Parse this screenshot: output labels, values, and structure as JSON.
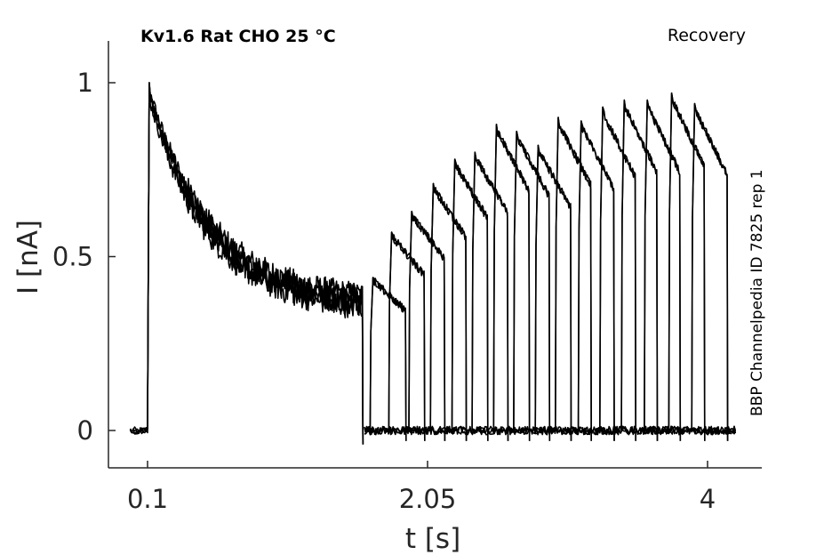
{
  "chart_data": {
    "type": "line",
    "title_left": "Kv1.6  Rat  CHO  25 °C",
    "title_right": "Recovery",
    "side_label": "BBP Channelpedia ID 7825 rep 1",
    "xlabel": "t [s]",
    "ylabel": "I [nA]",
    "x_ticks": [
      {
        "value": 0.1,
        "label": "0.1"
      },
      {
        "value": 2.05,
        "label": "2.05"
      },
      {
        "value": 4,
        "label": "4"
      }
    ],
    "y_ticks": [
      {
        "value": 0,
        "label": "0"
      },
      {
        "value": 0.5,
        "label": "0.5"
      },
      {
        "value": 1,
        "label": "1"
      }
    ],
    "xlim": [
      -0.25,
      4.35
    ],
    "ylim": [
      -0.11,
      1.12
    ],
    "grid": false,
    "legend": "none",
    "line_color": "#000000",
    "prepulse": {
      "start": 0.1,
      "end": 1.6,
      "peak": 1.0,
      "steady_state": 0.37
    },
    "recovery_pulses": [
      {
        "onset": 1.65,
        "duration": 0.25,
        "peak": 0.44
      },
      {
        "onset": 1.78,
        "duration": 0.25,
        "peak": 0.57
      },
      {
        "onset": 1.92,
        "duration": 0.25,
        "peak": 0.63
      },
      {
        "onset": 2.07,
        "duration": 0.25,
        "peak": 0.71
      },
      {
        "onset": 2.22,
        "duration": 0.25,
        "peak": 0.78
      },
      {
        "onset": 2.36,
        "duration": 0.25,
        "peak": 0.8
      },
      {
        "onset": 2.51,
        "duration": 0.25,
        "peak": 0.88
      },
      {
        "onset": 2.65,
        "duration": 0.25,
        "peak": 0.86
      },
      {
        "onset": 2.8,
        "duration": 0.25,
        "peak": 0.82
      },
      {
        "onset": 2.94,
        "duration": 0.25,
        "peak": 0.9
      },
      {
        "onset": 3.1,
        "duration": 0.25,
        "peak": 0.89
      },
      {
        "onset": 3.25,
        "duration": 0.25,
        "peak": 0.93
      },
      {
        "onset": 3.4,
        "duration": 0.25,
        "peak": 0.95
      },
      {
        "onset": 3.56,
        "duration": 0.25,
        "peak": 0.95
      },
      {
        "onset": 3.73,
        "duration": 0.25,
        "peak": 0.97
      },
      {
        "onset": 3.89,
        "duration": 0.25,
        "peak": 0.94
      }
    ]
  }
}
